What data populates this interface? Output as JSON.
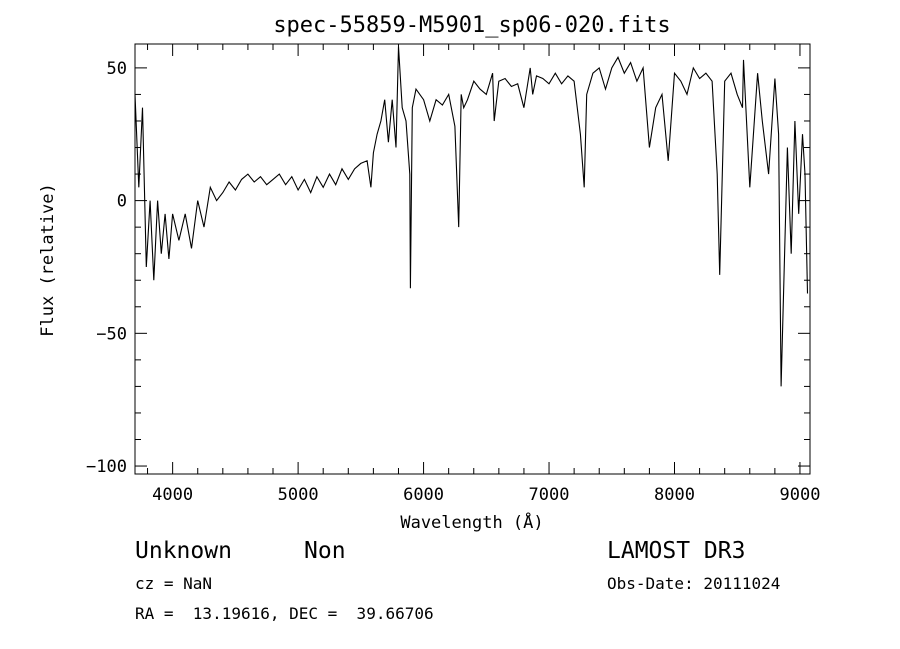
{
  "chart_data": {
    "type": "line",
    "title": "spec-55859-M5901_sp06-020.fits",
    "xlabel": "Wavelength (Å)",
    "ylabel": "Flux (relative)",
    "xlim": [
      3700,
      9080
    ],
    "ylim": [
      -103,
      59
    ],
    "xticks": [
      4000,
      5000,
      6000,
      7000,
      8000,
      9000
    ],
    "xtick_labels": [
      "4000",
      "5000",
      "6000",
      "7000",
      "8000",
      "9000"
    ],
    "yticks": [
      -100,
      -50,
      0,
      50
    ],
    "ytick_labels": [
      "−100",
      "−50",
      "0",
      "50"
    ],
    "grid": false,
    "line_color": "#000000",
    "series": [
      {
        "x": [
          3700,
          3730,
          3760,
          3790,
          3820,
          3850,
          3880,
          3910,
          3940,
          3970,
          4000,
          4050,
          4100,
          4150,
          4200,
          4250,
          4300,
          4350,
          4400,
          4450,
          4500,
          4550,
          4600,
          4650,
          4700,
          4750,
          4800,
          4850,
          4900,
          4950,
          5000,
          5050,
          5100,
          5150,
          5200,
          5250,
          5300,
          5350,
          5400,
          5450,
          5500,
          5550,
          5580,
          5600,
          5630,
          5660,
          5690,
          5720,
          5750,
          5780,
          5800,
          5830,
          5860,
          5890,
          5895,
          5910,
          5940,
          5970,
          6000,
          6050,
          6100,
          6150,
          6200,
          6250,
          6280,
          6300,
          6320,
          6350,
          6400,
          6450,
          6500,
          6550,
          6563,
          6600,
          6650,
          6700,
          6750,
          6800,
          6850,
          6870,
          6900,
          6950,
          7000,
          7050,
          7100,
          7150,
          7200,
          7250,
          7280,
          7300,
          7350,
          7400,
          7450,
          7500,
          7550,
          7600,
          7650,
          7700,
          7750,
          7800,
          7850,
          7900,
          7950,
          8000,
          8050,
          8100,
          8150,
          8200,
          8250,
          8300,
          8340,
          8360,
          8400,
          8450,
          8500,
          8542,
          8550,
          8600,
          8662,
          8700,
          8750,
          8800,
          8830,
          8850,
          8900,
          8930,
          8960,
          8990,
          9020,
          9040,
          9060
        ],
        "y": [
          40,
          5,
          35,
          -25,
          0,
          -30,
          0,
          -20,
          -5,
          -22,
          -5,
          -15,
          -5,
          -18,
          0,
          -10,
          5,
          0,
          3,
          7,
          4,
          8,
          10,
          7,
          9,
          6,
          8,
          10,
          6,
          9,
          4,
          8,
          3,
          9,
          5,
          10,
          6,
          12,
          8,
          12,
          14,
          15,
          5,
          18,
          25,
          30,
          38,
          22,
          38,
          20,
          58,
          35,
          30,
          10,
          -33,
          35,
          42,
          40,
          38,
          30,
          38,
          36,
          40,
          28,
          -10,
          40,
          35,
          38,
          45,
          42,
          40,
          48,
          30,
          45,
          46,
          43,
          44,
          35,
          50,
          40,
          47,
          46,
          44,
          48,
          44,
          47,
          45,
          25,
          5,
          40,
          48,
          50,
          42,
          50,
          54,
          48,
          52,
          45,
          50,
          20,
          35,
          40,
          15,
          48,
          45,
          40,
          50,
          46,
          48,
          45,
          10,
          -28,
          45,
          48,
          40,
          35,
          53,
          5,
          48,
          30,
          10,
          46,
          25,
          -70,
          20,
          -20,
          30,
          -5,
          25,
          10,
          -35
        ]
      }
    ]
  },
  "info": {
    "object_class": "Unknown",
    "object_subclass": "Non",
    "survey": "LAMOST DR3",
    "cz": "cz = NaN",
    "obs_date": "Obs-Date: 20111024",
    "coords": "RA =  13.19616, DEC =  39.66706"
  }
}
